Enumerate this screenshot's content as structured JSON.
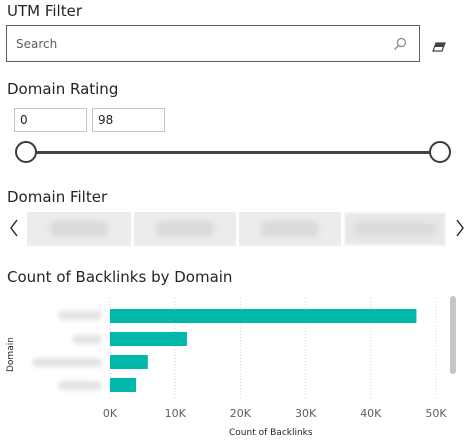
{
  "utm_filter": {
    "title": "UTM Filter",
    "search_placeholder": "Search",
    "search_icon": "magnifier-icon",
    "clear_icon": "eraser-icon"
  },
  "domain_rating": {
    "title": "Domain Rating",
    "min_value": "0",
    "max_value": "98"
  },
  "domain_filter": {
    "title": "Domain Filter",
    "prev_icon": "chevron-left-icon",
    "next_icon": "chevron-right-icon"
  },
  "backlinks_chart": {
    "title": "Count of Backlinks by Domain",
    "y_axis_title": "Domain",
    "x_axis_title": "Count of Backlinks",
    "bar_color": "#01B8AA"
  },
  "chart_data": {
    "type": "bar",
    "orientation": "horizontal",
    "title": "Count of Backlinks by Domain",
    "xlabel": "Count of Backlinks",
    "ylabel": "Domain",
    "xlim": [
      0,
      50000
    ],
    "x_ticks": [
      "0K",
      "10K",
      "20K",
      "30K",
      "40K",
      "50K"
    ],
    "values": [
      47000,
      11800,
      5800,
      4000
    ],
    "grid": "vertical dotted",
    "legend": "none"
  }
}
